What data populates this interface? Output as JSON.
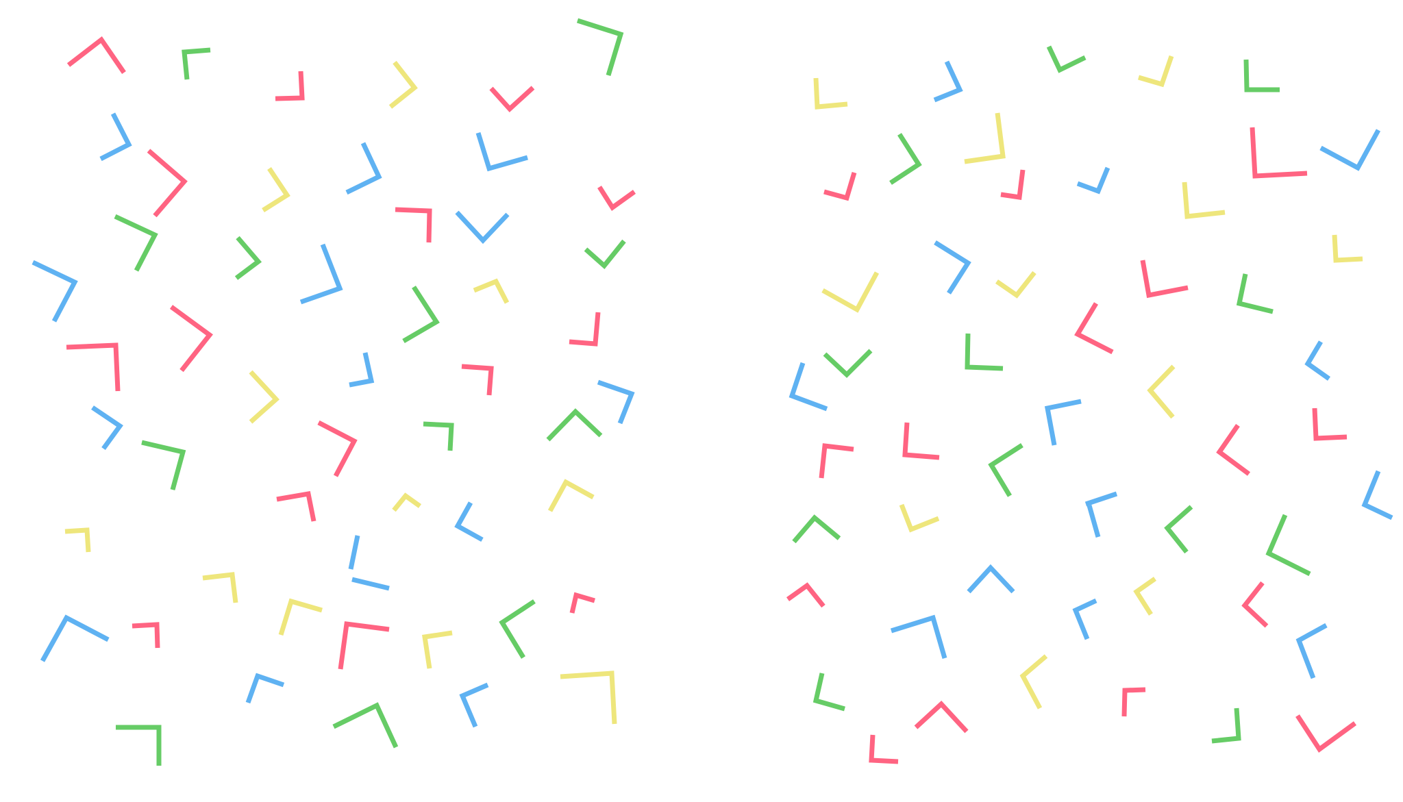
{
  "canvas": {
    "background": "#ffffff"
  },
  "colors": {
    "red": "#ff6482",
    "green": "#66cc66",
    "yellow": "#eee67c",
    "blue": "#5fb2f2"
  },
  "panels": [
    {
      "name": "left-panel",
      "shape": "open-corner-chevron",
      "count": 58
    },
    {
      "name": "right-panel",
      "shape": "open-corner-chevron",
      "count": 53
    }
  ]
}
